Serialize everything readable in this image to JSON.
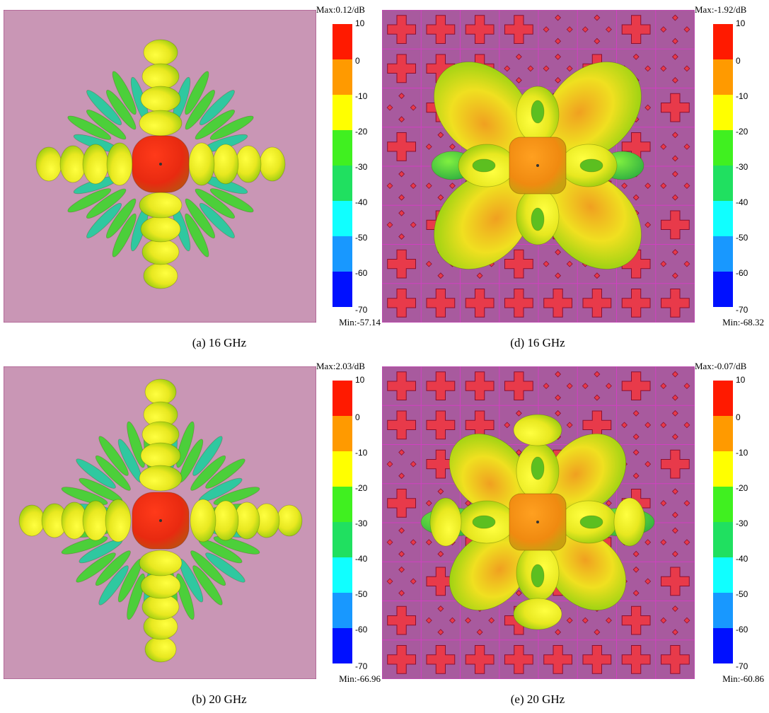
{
  "panels": [
    {
      "caption": "(a) 16 GHz",
      "max_label": "Max:0.12/dB",
      "min_label": "Min:-57.14",
      "colorbar_ticks": [
        10,
        0,
        -10,
        -20,
        -30,
        -40,
        -50,
        -60,
        -70
      ]
    },
    {
      "caption": "(d) 16 GHz",
      "max_label": "Max:-1.92/dB",
      "min_label": "Min:-68.32",
      "colorbar_ticks": [
        10,
        0,
        -10,
        -20,
        -30,
        -40,
        -50,
        -60,
        -70
      ]
    },
    {
      "caption": "(b) 20 GHz",
      "max_label": "Max:2.03/dB",
      "min_label": "Min:-66.96",
      "colorbar_ticks": [
        10,
        0,
        -10,
        -20,
        -30,
        -40,
        -50,
        -60,
        -70
      ]
    },
    {
      "caption": "(e) 20 GHz",
      "max_label": "Max:-0.07/dB",
      "min_label": "Min:-60.86",
      "colorbar_ticks": [
        10,
        0,
        -10,
        -20,
        -30,
        -40,
        -50,
        -60,
        -70
      ]
    }
  ]
}
